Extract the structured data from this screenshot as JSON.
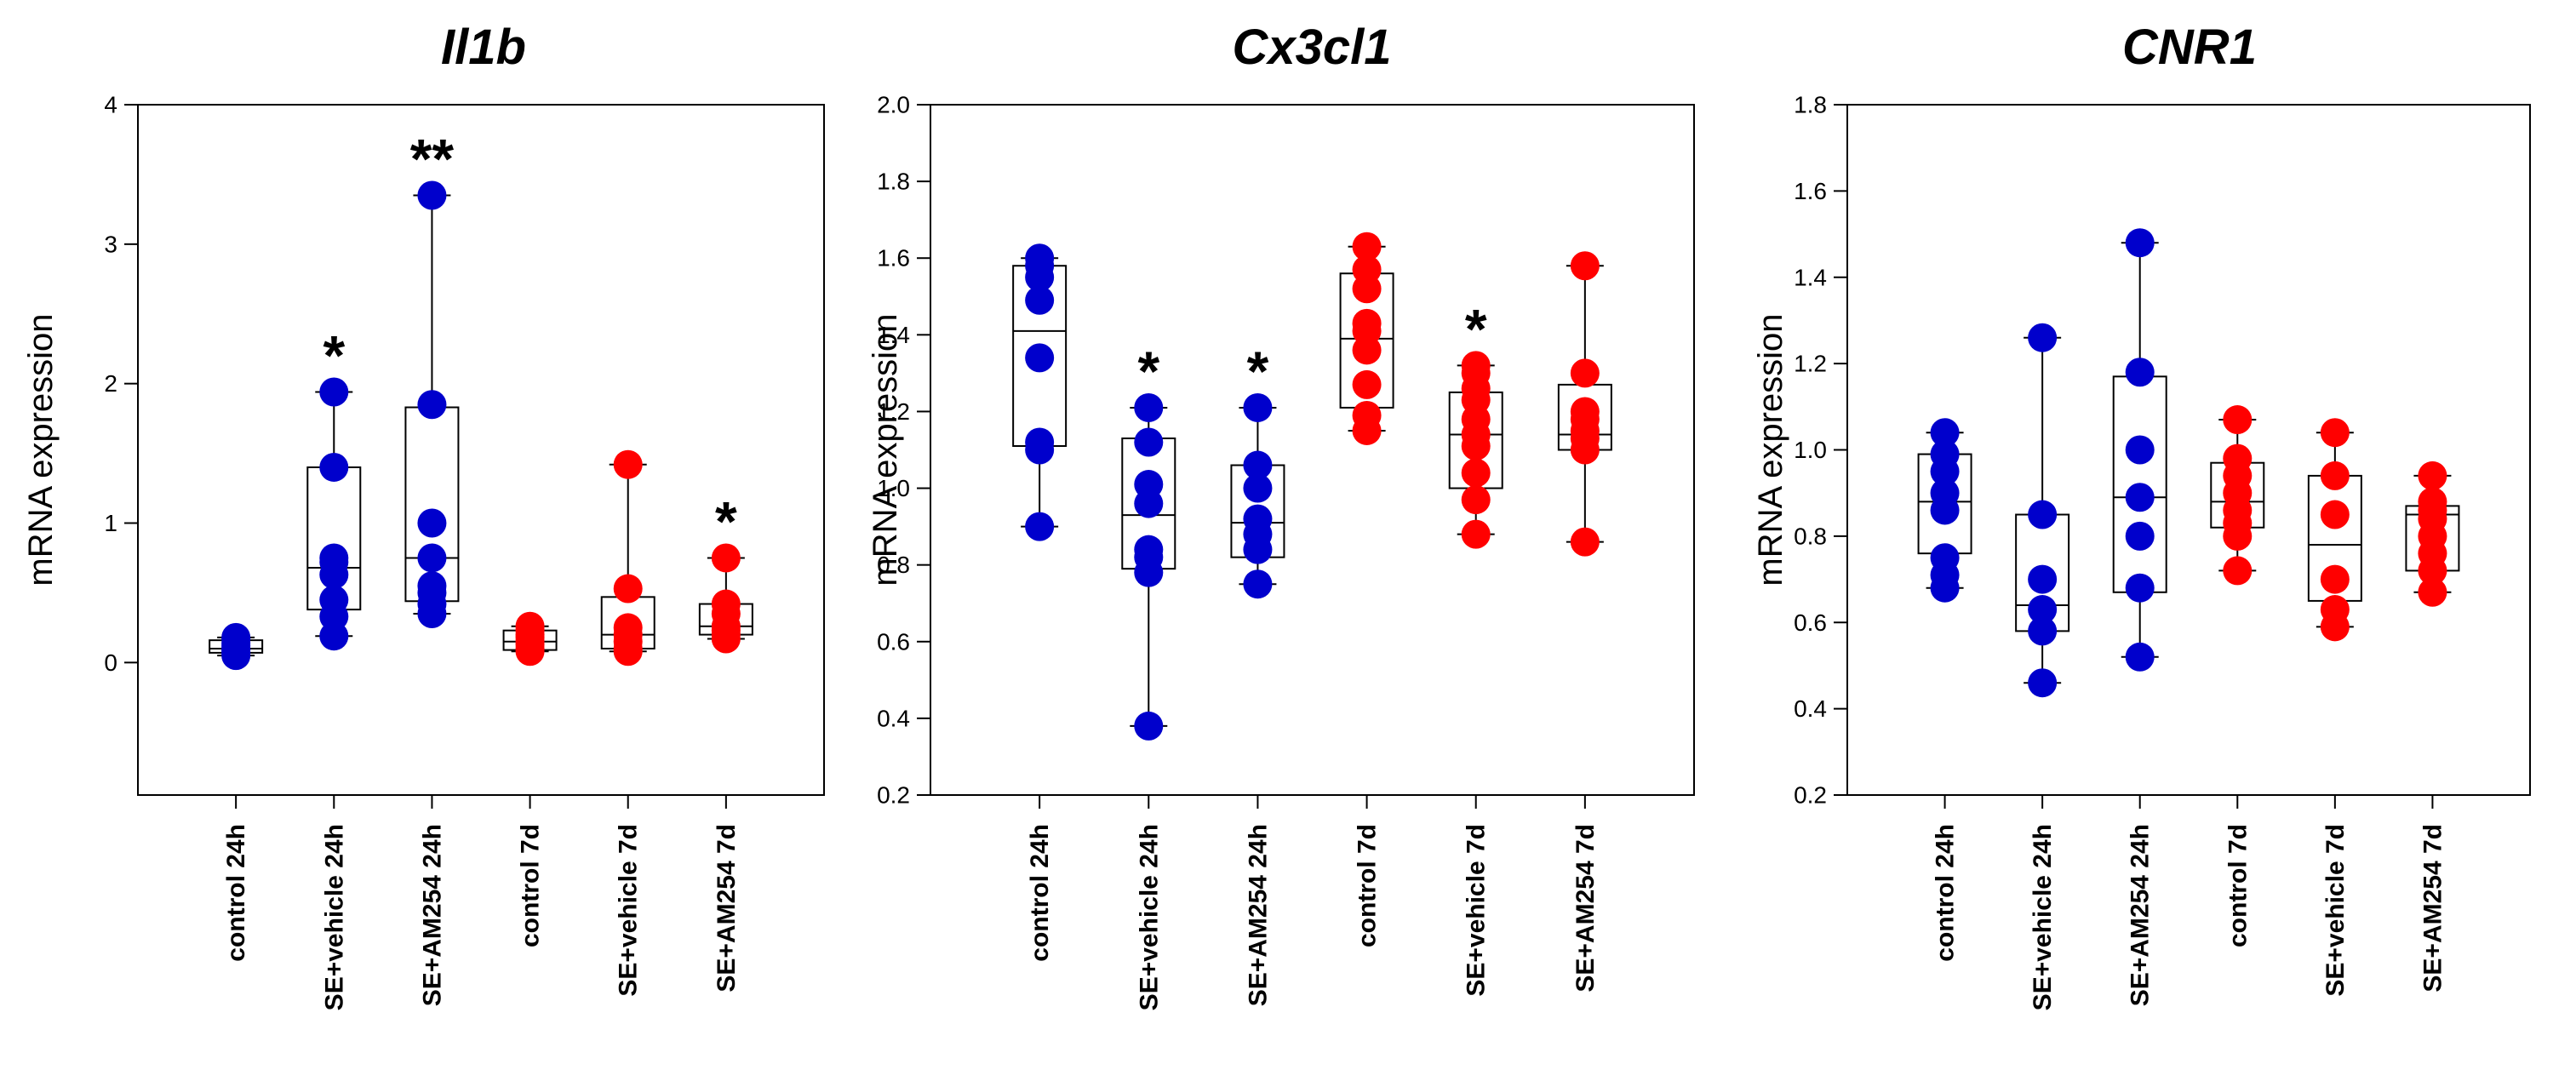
{
  "chart_data": [
    {
      "type": "box",
      "title": "Il1b",
      "ylabel": "mRNA expression",
      "xlabel": "",
      "ylim": [
        -0.95,
        4
      ],
      "yticks": [
        0,
        1,
        2,
        3,
        4
      ],
      "ytick_labels": [
        "0",
        "1",
        "2",
        "3",
        "4"
      ],
      "categories": [
        "control 24h",
        "SE+vehicle 24h",
        "SE+AM254 24h",
        "control 7d",
        "SE+vehicle 7d",
        "SE+AM254 7d"
      ],
      "groups": [
        {
          "category": "control 24h",
          "color": "#0000cc",
          "stats": {
            "min": 0.05,
            "q1": 0.07,
            "median": 0.1,
            "q3": 0.16,
            "max": 0.18
          },
          "points": [
            0.05,
            0.07,
            0.09,
            0.1,
            0.12,
            0.14,
            0.17,
            0.18
          ],
          "significance": ""
        },
        {
          "category": "SE+vehicle 24h",
          "color": "#0000cc",
          "stats": {
            "min": 0.19,
            "q1": 0.38,
            "median": 0.68,
            "q3": 1.4,
            "max": 1.94
          },
          "points": [
            0.19,
            0.33,
            0.45,
            0.63,
            0.72,
            0.75,
            1.4,
            1.94
          ],
          "significance": "*"
        },
        {
          "category": "SE+AM254 24h",
          "color": "#0000cc",
          "stats": {
            "min": 0.35,
            "q1": 0.44,
            "median": 0.75,
            "q3": 1.83,
            "max": 3.35
          },
          "points": [
            0.35,
            0.42,
            0.5,
            0.55,
            0.75,
            1.0,
            1.85,
            3.35
          ],
          "significance": "**"
        },
        {
          "category": "control 7d",
          "color": "#ff0000",
          "stats": {
            "min": 0.08,
            "q1": 0.09,
            "median": 0.15,
            "q3": 0.23,
            "max": 0.26
          },
          "points": [
            0.08,
            0.1,
            0.13,
            0.15,
            0.18,
            0.2,
            0.23,
            0.26
          ],
          "significance": ""
        },
        {
          "category": "SE+vehicle 7d",
          "color": "#ff0000",
          "stats": {
            "min": 0.08,
            "q1": 0.1,
            "median": 0.2,
            "q3": 0.47,
            "max": 1.42
          },
          "points": [
            0.08,
            0.1,
            0.15,
            0.2,
            0.25,
            0.53,
            1.42
          ],
          "significance": ""
        },
        {
          "category": "SE+AM254 7d",
          "color": "#ff0000",
          "stats": {
            "min": 0.17,
            "q1": 0.2,
            "median": 0.26,
            "q3": 0.42,
            "max": 0.75
          },
          "points": [
            0.17,
            0.2,
            0.23,
            0.26,
            0.35,
            0.42,
            0.75
          ],
          "significance": "*"
        }
      ]
    },
    {
      "type": "box",
      "title": "Cx3cl1",
      "ylabel": "mRNA expression",
      "xlabel": "",
      "ylim": [
        0.2,
        2.0
      ],
      "yticks": [
        0.2,
        0.4,
        0.6,
        0.8,
        1.0,
        1.2,
        1.4,
        1.6,
        1.8,
        2.0
      ],
      "ytick_labels": [
        "0.2",
        "0.4",
        "0.6",
        "0.8",
        "1.0",
        "1.2",
        "1.4",
        "1.6",
        "1.8",
        "2.0"
      ],
      "categories": [
        "control 24h",
        "SE+vehicle 24h",
        "SE+AM254 24h",
        "control 7d",
        "SE+vehicle 7d",
        "SE+AM254 7d"
      ],
      "groups": [
        {
          "category": "control 24h",
          "color": "#0000cc",
          "stats": {
            "min": 0.9,
            "q1": 1.11,
            "median": 1.41,
            "q3": 1.58,
            "max": 1.6
          },
          "points": [
            0.9,
            1.1,
            1.12,
            1.34,
            1.49,
            1.55,
            1.58,
            1.6
          ],
          "significance": ""
        },
        {
          "category": "SE+vehicle 24h",
          "color": "#0000cc",
          "stats": {
            "min": 0.38,
            "q1": 0.79,
            "median": 0.93,
            "q3": 1.13,
            "max": 1.21
          },
          "points": [
            0.38,
            0.78,
            0.82,
            0.84,
            0.96,
            1.01,
            1.12,
            1.21
          ],
          "significance": "*"
        },
        {
          "category": "SE+AM254 24h",
          "color": "#0000cc",
          "stats": {
            "min": 0.75,
            "q1": 0.82,
            "median": 0.91,
            "q3": 1.06,
            "max": 1.21
          },
          "points": [
            0.75,
            0.84,
            0.88,
            0.92,
            1.0,
            1.06,
            1.21
          ],
          "significance": "*"
        },
        {
          "category": "control 7d",
          "color": "#ff0000",
          "stats": {
            "min": 1.15,
            "q1": 1.21,
            "median": 1.39,
            "q3": 1.56,
            "max": 1.63
          },
          "points": [
            1.15,
            1.19,
            1.27,
            1.36,
            1.41,
            1.43,
            1.52,
            1.57,
            1.63
          ],
          "significance": ""
        },
        {
          "category": "SE+vehicle 7d",
          "color": "#ff0000",
          "stats": {
            "min": 0.88,
            "q1": 1.0,
            "median": 1.14,
            "q3": 1.25,
            "max": 1.32
          },
          "points": [
            0.88,
            0.97,
            1.04,
            1.11,
            1.14,
            1.18,
            1.23,
            1.26,
            1.3,
            1.32
          ],
          "significance": "*"
        },
        {
          "category": "SE+AM254 7d",
          "color": "#ff0000",
          "stats": {
            "min": 0.86,
            "q1": 1.1,
            "median": 1.14,
            "q3": 1.27,
            "max": 1.58
          },
          "points": [
            0.86,
            1.1,
            1.13,
            1.15,
            1.18,
            1.2,
            1.3,
            1.58
          ],
          "significance": ""
        }
      ]
    },
    {
      "type": "box",
      "title": "CNR1",
      "ylabel": "mRNA expression",
      "xlabel": "",
      "ylim": [
        0.2,
        1.8
      ],
      "yticks": [
        0.2,
        0.4,
        0.6,
        0.8,
        1.0,
        1.2,
        1.4,
        1.6,
        1.8
      ],
      "ytick_labels": [
        "0.2",
        "0.4",
        "0.6",
        "0.8",
        "1.0",
        "1.2",
        "1.4",
        "1.6",
        "1.8"
      ],
      "categories": [
        "control 24h",
        "SE+vehicle 24h",
        "SE+AM254 24h",
        "control 7d",
        "SE+vehicle 7d",
        "SE+AM254 7d"
      ],
      "groups": [
        {
          "category": "control 24h",
          "color": "#0000cc",
          "stats": {
            "min": 0.68,
            "q1": 0.76,
            "median": 0.88,
            "q3": 0.99,
            "max": 1.04
          },
          "points": [
            0.68,
            0.71,
            0.75,
            0.86,
            0.9,
            0.95,
            0.99,
            1.04
          ],
          "significance": ""
        },
        {
          "category": "SE+vehicle 24h",
          "color": "#0000cc",
          "stats": {
            "min": 0.46,
            "q1": 0.58,
            "median": 0.64,
            "q3": 0.85,
            "max": 1.26
          },
          "points": [
            0.46,
            0.58,
            0.63,
            0.7,
            0.85,
            1.26
          ],
          "significance": ""
        },
        {
          "category": "SE+AM254 24h",
          "color": "#0000cc",
          "stats": {
            "min": 0.52,
            "q1": 0.67,
            "median": 0.89,
            "q3": 1.17,
            "max": 1.48
          },
          "points": [
            0.52,
            0.68,
            0.8,
            0.89,
            1.0,
            1.18,
            1.48
          ],
          "significance": ""
        },
        {
          "category": "control 7d",
          "color": "#ff0000",
          "stats": {
            "min": 0.72,
            "q1": 0.82,
            "median": 0.88,
            "q3": 0.97,
            "max": 1.07
          },
          "points": [
            0.72,
            0.8,
            0.83,
            0.86,
            0.9,
            0.94,
            0.98,
            1.07
          ],
          "significance": ""
        },
        {
          "category": "SE+vehicle 7d",
          "color": "#ff0000",
          "stats": {
            "min": 0.59,
            "q1": 0.65,
            "median": 0.78,
            "q3": 0.94,
            "max": 1.04
          },
          "points": [
            0.59,
            0.63,
            0.7,
            0.85,
            0.94,
            1.04
          ],
          "significance": ""
        },
        {
          "category": "SE+AM254 7d",
          "color": "#ff0000",
          "stats": {
            "min": 0.67,
            "q1": 0.72,
            "median": 0.85,
            "q3": 0.87,
            "max": 0.94
          },
          "points": [
            0.67,
            0.72,
            0.76,
            0.8,
            0.84,
            0.86,
            0.88,
            0.94
          ],
          "significance": ""
        }
      ]
    }
  ]
}
